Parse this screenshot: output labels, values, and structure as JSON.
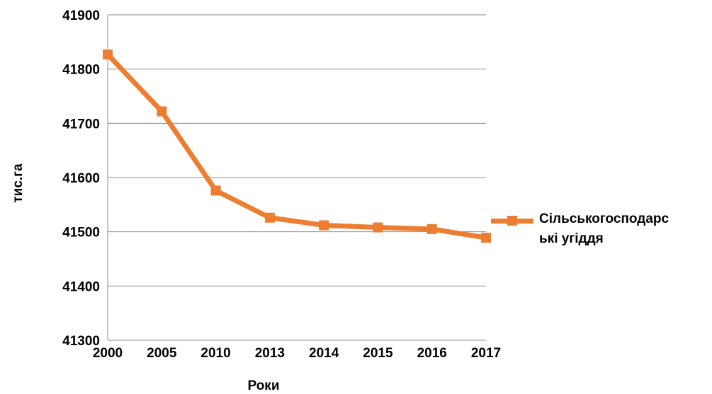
{
  "chart_data": {
    "type": "line",
    "categories": [
      "2000",
      "2005",
      "2010",
      "2013",
      "2014",
      "2015",
      "2016",
      "2017"
    ],
    "series": [
      {
        "name": "Сільськогосподарські угіддя",
        "name_lines": [
          "Сільськогосподарс",
          "ькі угіддя"
        ],
        "values": [
          41827,
          41722,
          41576,
          41526,
          41512,
          41508,
          41505,
          41489
        ],
        "color": "#ED7D31"
      }
    ],
    "xlabel": "Роки",
    "ylabel": "тис.га",
    "ylim": [
      41300,
      41900
    ],
    "yticks": [
      41300,
      41400,
      41500,
      41600,
      41700,
      41800,
      41900
    ],
    "grid": true,
    "legend": "right"
  }
}
